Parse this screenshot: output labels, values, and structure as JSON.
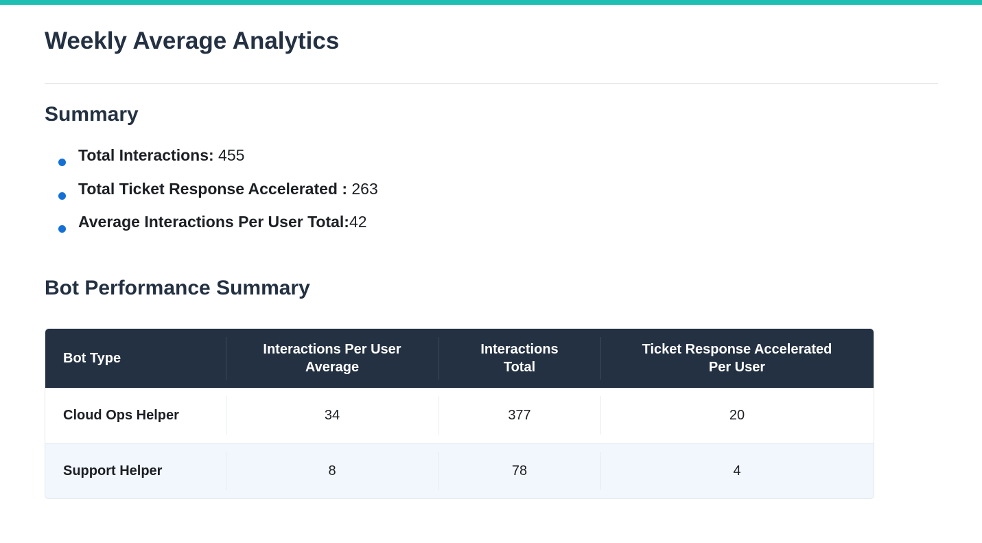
{
  "page": {
    "title": "Weekly Average Analytics",
    "accent_color": "#1fbfb4",
    "header_color": "#243142",
    "bullet_color": "#1470d4"
  },
  "summary": {
    "title": "Summary",
    "items": [
      {
        "label": "Total Interactions:",
        "value": " 455"
      },
      {
        "label": "Total Ticket Response Accelerated :",
        "value": " 263"
      },
      {
        "label": "Average Interactions Per User Total:",
        "value": "42"
      }
    ]
  },
  "performance": {
    "title": "Bot Performance Summary",
    "headers": [
      [
        "Bot Type"
      ],
      [
        "Interactions Per User",
        "Average"
      ],
      [
        "Interactions",
        "Total"
      ],
      [
        "Ticket Response Accelerated",
        "Per User"
      ]
    ],
    "rows": [
      [
        "Cloud Ops Helper",
        "34",
        "377",
        "20"
      ],
      [
        "Support Helper",
        "8",
        "78",
        "4"
      ]
    ]
  }
}
